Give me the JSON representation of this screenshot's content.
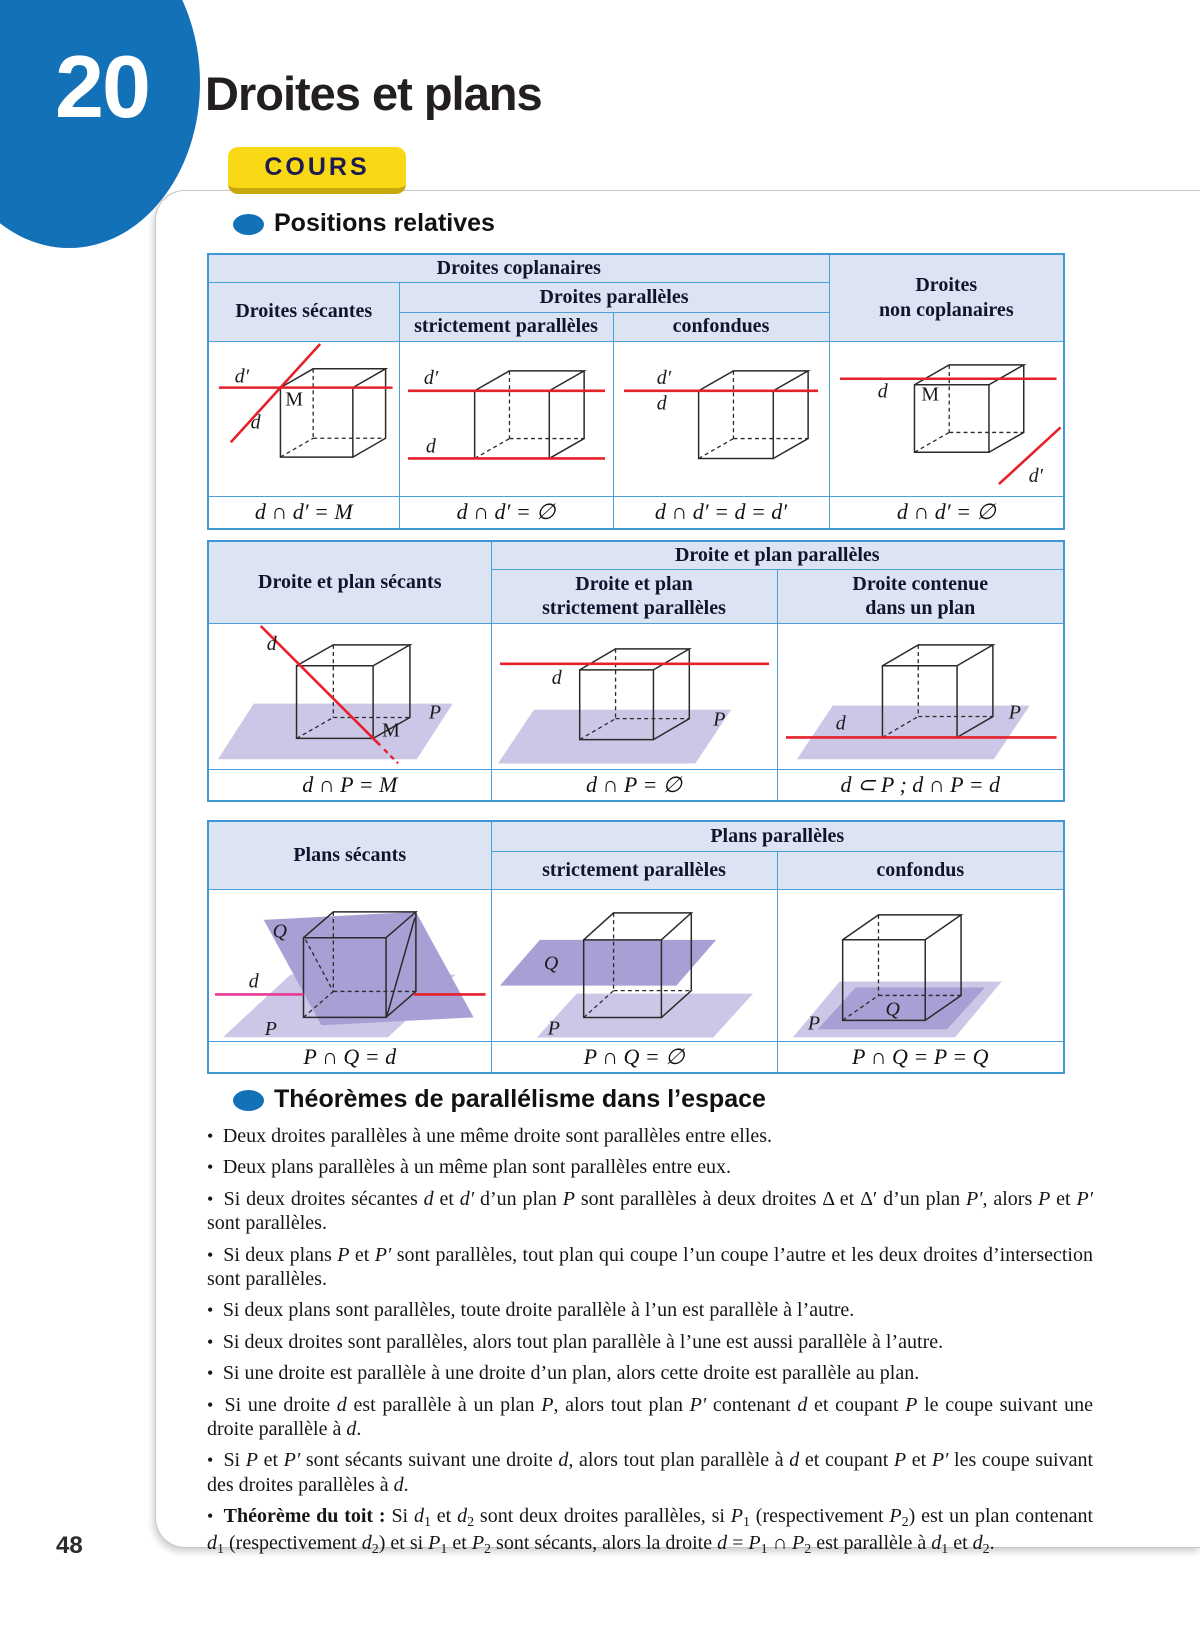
{
  "page": {
    "chapter_number": "20",
    "title": "Droites et plans",
    "badge": "COURS",
    "page_number": "48"
  },
  "sections": {
    "s1": "Positions relatives",
    "s2": "Théorèmes de parallélisme dans l’espace"
  },
  "labels": {
    "d": "d",
    "dprime": "d′",
    "M": "M",
    "P": "P",
    "Q": "Q"
  },
  "table1": {
    "coplanaires": "Droites coplanaires",
    "non_coplanaires": "Droites\nnon coplanaires",
    "secantes": "Droites sécantes",
    "paralleles": "Droites parallèles",
    "strictement": "strictement parallèles",
    "confondues": "confondues",
    "formulas": [
      "d ∩ d′ = M",
      "d ∩ d′ = ∅",
      "d ∩ d′ = d = d′",
      "d ∩ d′ = ∅"
    ]
  },
  "table2": {
    "secants": "Droite et plan sécants",
    "paralleles": "Droite et plan parallèles",
    "strictement": "Droite et plan\nstrictement parallèles",
    "contenue": "Droite contenue\ndans un plan",
    "formulas": [
      "d ∩ P = M",
      "d ∩ P = ∅",
      "d ⊂ P ; d ∩ P = d"
    ]
  },
  "table3": {
    "secants": "Plans sécants",
    "paralleles": "Plans parallèles",
    "strictement": "strictement parallèles",
    "confondus": "confondus",
    "formulas": [
      "P ∩ Q = d",
      "P ∩ Q = ∅",
      "P ∩ Q = P = Q"
    ]
  },
  "colors": {
    "accent_blue": "#1371b8",
    "table_border": "#4aa0d8",
    "header_bg": "#dce4f4",
    "badge_yellow": "#f9d916",
    "line_red": "#e62129",
    "line_magenta": "#ea3a96",
    "plane_light": "#cdc7e7",
    "plane_dark": "#a89fd4"
  },
  "theorems": {
    "items": [
      {
        "segments": [
          {
            "t": "Deux droites parallèles à une même droite sont parallèles entre elles."
          }
        ]
      },
      {
        "segments": [
          {
            "t": "Deux plans parallèles à un même plan sont parallèles entre eux."
          }
        ]
      },
      {
        "segments": [
          {
            "t": "Si deux droites sécantes "
          },
          {
            "t": "d",
            "s": "i"
          },
          {
            "t": " et "
          },
          {
            "t": "d′",
            "s": "i"
          },
          {
            "t": " d’un plan "
          },
          {
            "t": "P",
            "s": "i"
          },
          {
            "t": " sont parallèles à deux droites Δ et Δ′ d’un plan "
          },
          {
            "t": "P′",
            "s": "i"
          },
          {
            "t": ", alors "
          },
          {
            "t": "P",
            "s": "i"
          },
          {
            "t": " et "
          },
          {
            "t": "P′",
            "s": "i"
          },
          {
            "t": " sont parallèles."
          }
        ]
      },
      {
        "segments": [
          {
            "t": "Si deux plans "
          },
          {
            "t": "P",
            "s": "i"
          },
          {
            "t": " et "
          },
          {
            "t": "P′",
            "s": "i"
          },
          {
            "t": " sont parallèles, tout plan qui coupe l’un coupe l’autre et les deux droites d’intersection sont parallèles."
          }
        ]
      },
      {
        "segments": [
          {
            "t": "Si deux plans sont parallèles, toute droite parallèle à l’un est parallèle à l’autre."
          }
        ]
      },
      {
        "segments": [
          {
            "t": "Si deux droites sont parallèles, alors tout plan parallèle à l’une est aussi parallèle à l’autre."
          }
        ]
      },
      {
        "segments": [
          {
            "t": "Si une droite est parallèle à une droite d’un plan, alors cette droite est parallèle au plan."
          }
        ]
      },
      {
        "segments": [
          {
            "t": "Si une droite "
          },
          {
            "t": "d",
            "s": "i"
          },
          {
            "t": " est parallèle à un plan "
          },
          {
            "t": "P",
            "s": "i"
          },
          {
            "t": ", alors tout plan "
          },
          {
            "t": "P′",
            "s": "i"
          },
          {
            "t": " contenant "
          },
          {
            "t": "d",
            "s": "i"
          },
          {
            "t": " et coupant "
          },
          {
            "t": "P",
            "s": "i"
          },
          {
            "t": " le coupe suivant une droite parallèle à "
          },
          {
            "t": "d",
            "s": "i"
          },
          {
            "t": "."
          }
        ]
      },
      {
        "segments": [
          {
            "t": "Si "
          },
          {
            "t": "P",
            "s": "i"
          },
          {
            "t": " et "
          },
          {
            "t": "P′",
            "s": "i"
          },
          {
            "t": " sont sécants suivant une droite "
          },
          {
            "t": "d",
            "s": "i"
          },
          {
            "t": ", alors tout plan parallèle à "
          },
          {
            "t": "d",
            "s": "i"
          },
          {
            "t": " et coupant "
          },
          {
            "t": "P",
            "s": "i"
          },
          {
            "t": " et "
          },
          {
            "t": "P′",
            "s": "i"
          },
          {
            "t": " les coupe suivant des droites parallèles à "
          },
          {
            "t": "d",
            "s": "i"
          },
          {
            "t": "."
          }
        ]
      },
      {
        "segments": [
          {
            "t": "Théorème du toit : ",
            "s": "b"
          },
          {
            "t": "Si "
          },
          {
            "t": "d",
            "s": "i"
          },
          {
            "t": "1",
            "s": "sub"
          },
          {
            "t": " et "
          },
          {
            "t": "d",
            "s": "i"
          },
          {
            "t": "2",
            "s": "sub"
          },
          {
            "t": " sont deux droites parallèles, si "
          },
          {
            "t": "P",
            "s": "i"
          },
          {
            "t": "1",
            "s": "sub"
          },
          {
            "t": " (respectivement "
          },
          {
            "t": "P",
            "s": "i"
          },
          {
            "t": "2",
            "s": "sub"
          },
          {
            "t": ") est un plan contenant "
          },
          {
            "t": "d",
            "s": "i"
          },
          {
            "t": "1",
            "s": "sub"
          },
          {
            "t": " (respectivement "
          },
          {
            "t": "d",
            "s": "i"
          },
          {
            "t": "2",
            "s": "sub"
          },
          {
            "t": ") et si "
          },
          {
            "t": "P",
            "s": "i"
          },
          {
            "t": "1",
            "s": "sub"
          },
          {
            "t": " et "
          },
          {
            "t": "P",
            "s": "i"
          },
          {
            "t": "2",
            "s": "sub"
          },
          {
            "t": " sont sécants, alors la droite "
          },
          {
            "t": "d",
            "s": "i"
          },
          {
            "t": " = "
          },
          {
            "t": "P",
            "s": "i"
          },
          {
            "t": "1",
            "s": "sub"
          },
          {
            "t": " ∩ "
          },
          {
            "t": "P",
            "s": "i"
          },
          {
            "t": "2",
            "s": "sub"
          },
          {
            "t": " est parallèle à "
          },
          {
            "t": "d",
            "s": "i"
          },
          {
            "t": "1",
            "s": "sub"
          },
          {
            "t": " et "
          },
          {
            "t": "d",
            "s": "i"
          },
          {
            "t": "2",
            "s": "sub"
          },
          {
            "t": "."
          }
        ]
      }
    ]
  }
}
